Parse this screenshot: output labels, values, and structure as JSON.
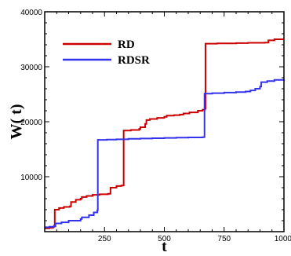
{
  "chart_data": {
    "type": "line",
    "title": "",
    "xlabel": "t",
    "ylabel": "W( t)",
    "xlim": [
      0,
      1000
    ],
    "ylim": [
      0,
      40000
    ],
    "x_ticks": [
      {
        "value": 250,
        "label": "250"
      },
      {
        "value": 500,
        "label": "500"
      },
      {
        "value": 750,
        "label": "750"
      },
      {
        "value": 1000,
        "label": "1000"
      }
    ],
    "y_ticks": [
      {
        "value": 10000,
        "label": "10000"
      },
      {
        "value": 20000,
        "label": "20000"
      },
      {
        "value": 30000,
        "label": "30000"
      },
      {
        "value": 40000,
        "label": "40000"
      }
    ],
    "grid": false,
    "legend_position": "top-left",
    "series": [
      {
        "name": "RD",
        "color": "#cc0000",
        "points": [
          [
            0,
            600
          ],
          [
            20,
            700
          ],
          [
            35,
            900
          ],
          [
            40,
            1100
          ],
          [
            42,
            4000
          ],
          [
            60,
            4300
          ],
          [
            80,
            4500
          ],
          [
            105,
            4600
          ],
          [
            110,
            5400
          ],
          [
            130,
            5800
          ],
          [
            150,
            6000
          ],
          [
            155,
            6300
          ],
          [
            175,
            6500
          ],
          [
            200,
            6700
          ],
          [
            230,
            6800
          ],
          [
            265,
            6900
          ],
          [
            275,
            8000
          ],
          [
            300,
            8300
          ],
          [
            320,
            8400
          ],
          [
            330,
            18400
          ],
          [
            360,
            18500
          ],
          [
            395,
            18700
          ],
          [
            400,
            19000
          ],
          [
            420,
            19600
          ],
          [
            425,
            20300
          ],
          [
            440,
            20500
          ],
          [
            470,
            20700
          ],
          [
            500,
            20900
          ],
          [
            510,
            21100
          ],
          [
            540,
            21200
          ],
          [
            565,
            21300
          ],
          [
            580,
            21500
          ],
          [
            605,
            21700
          ],
          [
            640,
            22000
          ],
          [
            660,
            22200
          ],
          [
            670,
            22400
          ],
          [
            672,
            34200
          ],
          [
            720,
            34250
          ],
          [
            800,
            34300
          ],
          [
            850,
            34350
          ],
          [
            920,
            34400
          ],
          [
            935,
            34800
          ],
          [
            960,
            35000
          ],
          [
            1000,
            35000
          ]
        ]
      },
      {
        "name": "RDSR",
        "color": "#3333ee",
        "points": [
          [
            0,
            800
          ],
          [
            20,
            900
          ],
          [
            40,
            1000
          ],
          [
            45,
            1500
          ],
          [
            70,
            1700
          ],
          [
            100,
            2000
          ],
          [
            150,
            2300
          ],
          [
            155,
            2600
          ],
          [
            185,
            3000
          ],
          [
            205,
            3500
          ],
          [
            220,
            3900
          ],
          [
            222,
            16700
          ],
          [
            260,
            16750
          ],
          [
            300,
            16800
          ],
          [
            350,
            16900
          ],
          [
            400,
            16950
          ],
          [
            450,
            17000
          ],
          [
            500,
            17050
          ],
          [
            550,
            17100
          ],
          [
            600,
            17150
          ],
          [
            660,
            17200
          ],
          [
            668,
            25100
          ],
          [
            700,
            25200
          ],
          [
            750,
            25300
          ],
          [
            800,
            25400
          ],
          [
            840,
            25500
          ],
          [
            860,
            25700
          ],
          [
            880,
            26000
          ],
          [
            900,
            26400
          ],
          [
            905,
            27200
          ],
          [
            930,
            27400
          ],
          [
            960,
            27600
          ],
          [
            1000,
            27700
          ]
        ]
      }
    ]
  }
}
